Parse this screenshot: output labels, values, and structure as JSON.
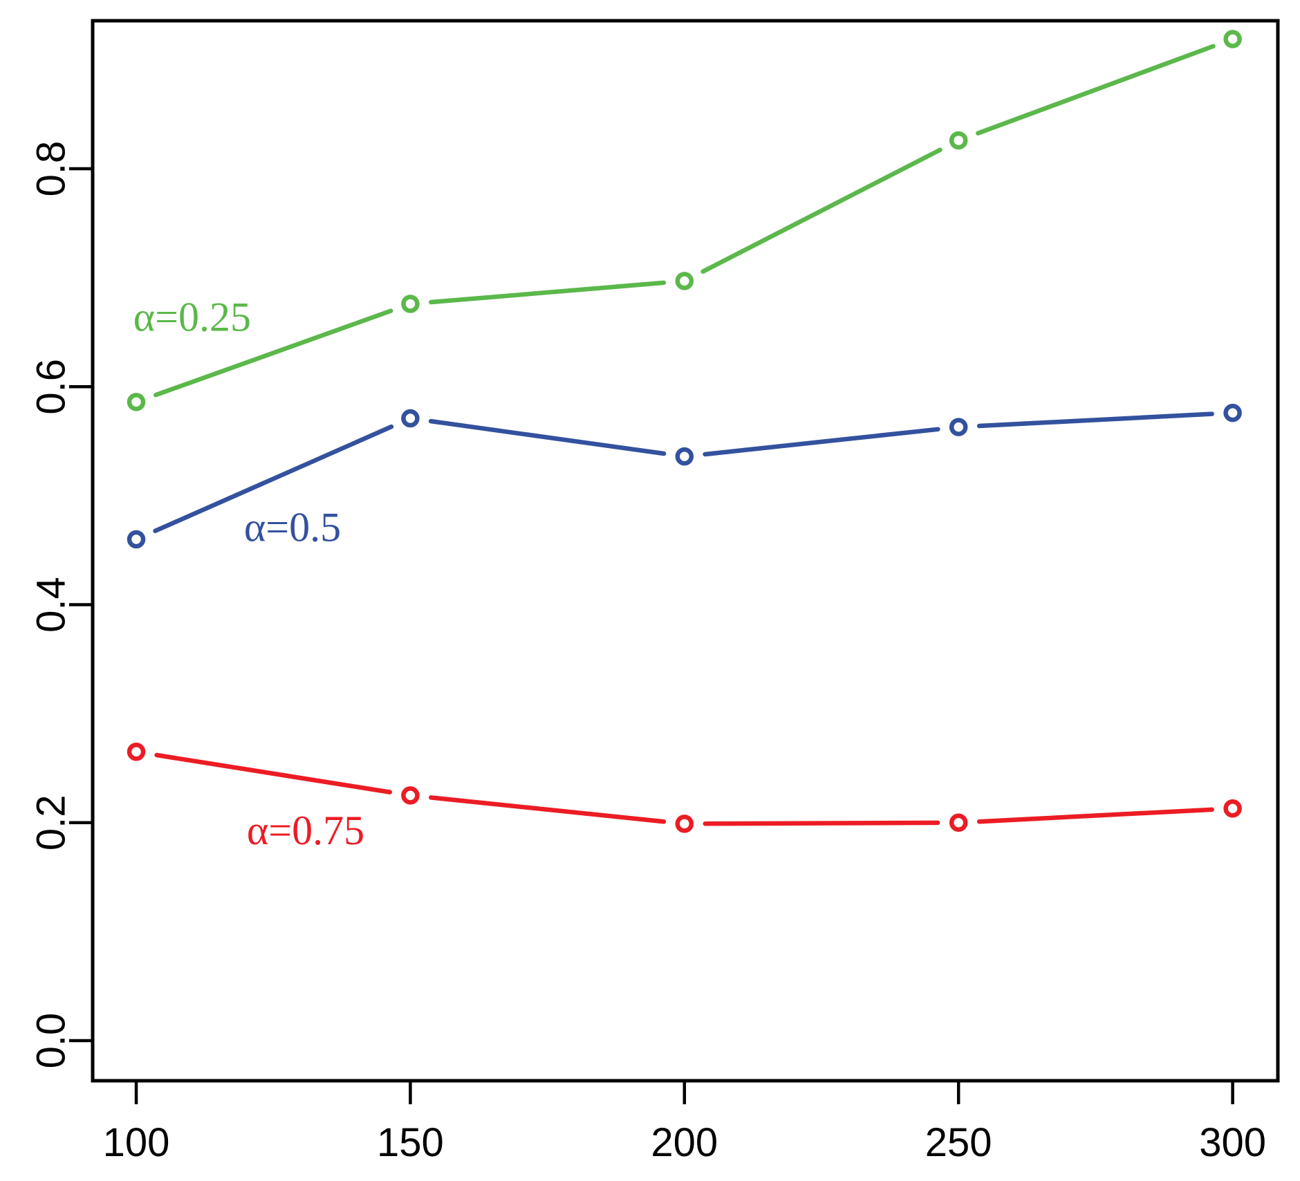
{
  "figure": {
    "background": "#ffffff",
    "axis_color": "#000000"
  },
  "chart_data": {
    "type": "line",
    "title": "",
    "xlabel": "",
    "ylabel": "",
    "grid": false,
    "legend_position": "inline-labels",
    "marker": "open-circle",
    "x": [
      100,
      150,
      200,
      250,
      300
    ],
    "series": [
      {
        "name": "alpha=0.25",
        "label": "α=0.25",
        "color": "#5bb84a",
        "values": [
          0.586,
          0.676,
          0.697,
          0.826,
          0.919
        ]
      },
      {
        "name": "alpha=0.5",
        "label": "α=0.5",
        "color": "#33519e",
        "values": [
          0.46,
          0.571,
          0.536,
          0.563,
          0.576
        ]
      },
      {
        "name": "alpha=0.75",
        "label": "α=0.75",
        "color": "#ec1c24",
        "values": [
          0.265,
          0.225,
          0.199,
          0.2,
          0.213
        ]
      }
    ],
    "annotations": [
      {
        "text": "α=0.25",
        "x": 110.2,
        "y": 0.664,
        "color": "#5bb84a"
      },
      {
        "text": "α=0.5",
        "x": 128.5,
        "y": 0.471,
        "color": "#33519e"
      },
      {
        "text": "α=0.75",
        "x": 130.9,
        "y": 0.193,
        "color": "#ec1c24"
      }
    ],
    "xticks": [
      100,
      150,
      200,
      250,
      300
    ],
    "xtick_labels": [
      "100",
      "150",
      "200",
      "250",
      "300"
    ],
    "yticks": [
      0.0,
      0.2,
      0.4,
      0.6,
      0.8
    ],
    "ytick_labels": [
      "0.0",
      "0.2",
      "0.4",
      "0.6",
      "0.8"
    ],
    "xlim": [
      92.05,
      308.25
    ],
    "ylim": [
      -0.0368,
      0.9358
    ]
  }
}
